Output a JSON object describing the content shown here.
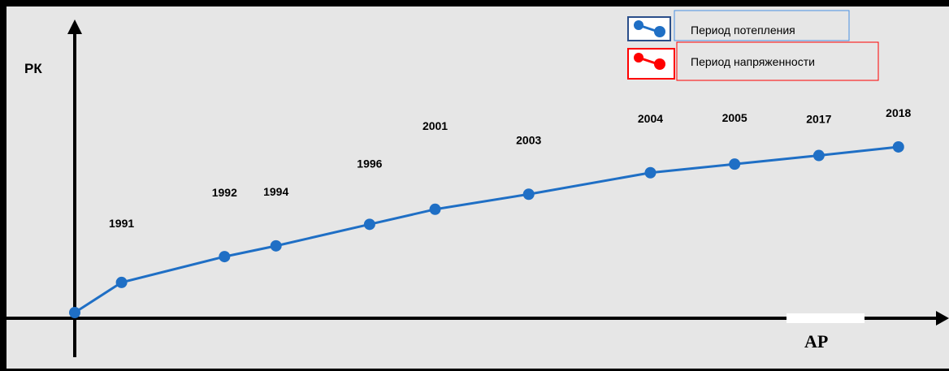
{
  "chart_data": {
    "type": "line",
    "title": "",
    "ylabel": "РК",
    "xlabel": "АР",
    "categories": [
      "",
      "1991",
      "1992",
      "1994",
      "1996",
      "2001",
      "2003",
      "2004",
      "2005",
      "2017",
      "2018"
    ],
    "series": [
      {
        "name": "Период потепления",
        "color": "#1f6fc5",
        "points": [
          {
            "x": 0,
            "y": 0
          },
          {
            "x": 1,
            "y": 14
          },
          {
            "x": 3.2,
            "y": 26
          },
          {
            "x": 4.3,
            "y": 31
          },
          {
            "x": 6.3,
            "y": 41
          },
          {
            "x": 7.7,
            "y": 48
          },
          {
            "x": 9.7,
            "y": 55
          },
          {
            "x": 12.3,
            "y": 65
          },
          {
            "x": 14.1,
            "y": 69
          },
          {
            "x": 15.9,
            "y": 73
          },
          {
            "x": 17.6,
            "y": 77
          }
        ]
      }
    ],
    "legend": [
      {
        "label": "Период потепления",
        "color": "#1f6fc5"
      },
      {
        "label": "Период напряженности",
        "color": "#ff0000"
      }
    ],
    "legend_position": "top-right",
    "grid": false
  }
}
